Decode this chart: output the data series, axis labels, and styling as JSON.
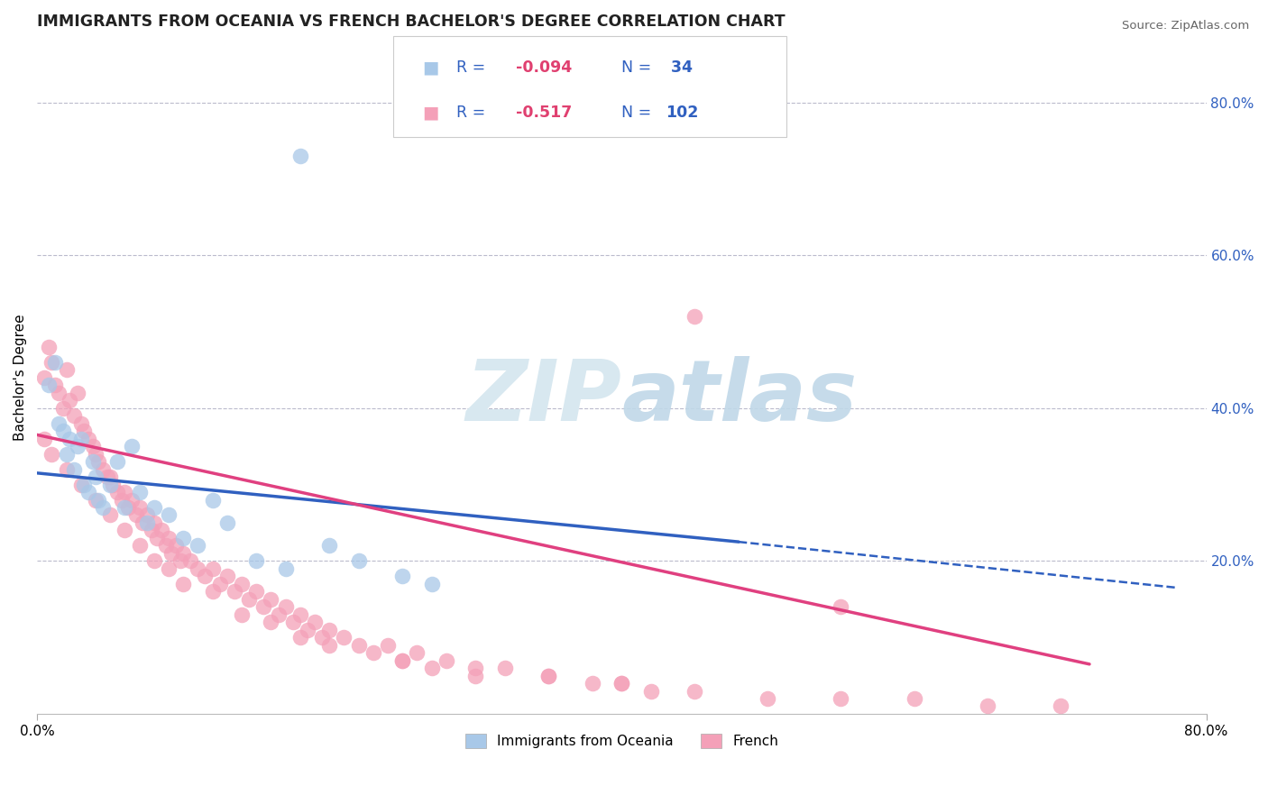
{
  "title": "IMMIGRANTS FROM OCEANIA VS FRENCH BACHELOR'S DEGREE CORRELATION CHART",
  "source": "Source: ZipAtlas.com",
  "ylabel": "Bachelor's Degree",
  "blue_color": "#a8c8e8",
  "pink_color": "#f4a0b8",
  "blue_line_color": "#3060c0",
  "pink_line_color": "#e04080",
  "legend_r_color": "#e04070",
  "legend_n_color": "#3060c0",
  "legend_label_color": "#3060c0",
  "watermark_color": "#d8e8f0",
  "xmin": 0.0,
  "xmax": 0.8,
  "ymin": 0.0,
  "ymax": 0.88,
  "blue_scatter_x": [
    0.008,
    0.012,
    0.015,
    0.018,
    0.02,
    0.022,
    0.025,
    0.028,
    0.03,
    0.032,
    0.035,
    0.038,
    0.04,
    0.042,
    0.045,
    0.05,
    0.055,
    0.06,
    0.065,
    0.07,
    0.075,
    0.08,
    0.09,
    0.1,
    0.11,
    0.12,
    0.13,
    0.15,
    0.17,
    0.2,
    0.22,
    0.25,
    0.27,
    0.18
  ],
  "blue_scatter_y": [
    0.43,
    0.46,
    0.38,
    0.37,
    0.34,
    0.36,
    0.32,
    0.35,
    0.36,
    0.3,
    0.29,
    0.33,
    0.31,
    0.28,
    0.27,
    0.3,
    0.33,
    0.27,
    0.35,
    0.29,
    0.25,
    0.27,
    0.26,
    0.23,
    0.22,
    0.28,
    0.25,
    0.2,
    0.19,
    0.22,
    0.2,
    0.18,
    0.17,
    0.73
  ],
  "pink_scatter_x": [
    0.005,
    0.008,
    0.01,
    0.012,
    0.015,
    0.018,
    0.02,
    0.022,
    0.025,
    0.028,
    0.03,
    0.032,
    0.035,
    0.038,
    0.04,
    0.042,
    0.045,
    0.048,
    0.05,
    0.052,
    0.055,
    0.058,
    0.06,
    0.062,
    0.065,
    0.068,
    0.07,
    0.072,
    0.075,
    0.078,
    0.08,
    0.082,
    0.085,
    0.088,
    0.09,
    0.092,
    0.095,
    0.098,
    0.1,
    0.105,
    0.11,
    0.115,
    0.12,
    0.125,
    0.13,
    0.135,
    0.14,
    0.145,
    0.15,
    0.155,
    0.16,
    0.165,
    0.17,
    0.175,
    0.18,
    0.185,
    0.19,
    0.195,
    0.2,
    0.21,
    0.22,
    0.23,
    0.24,
    0.25,
    0.26,
    0.27,
    0.28,
    0.3,
    0.32,
    0.35,
    0.38,
    0.4,
    0.42,
    0.45,
    0.5,
    0.55,
    0.6,
    0.65,
    0.7,
    0.005,
    0.01,
    0.02,
    0.03,
    0.04,
    0.05,
    0.06,
    0.07,
    0.08,
    0.09,
    0.1,
    0.12,
    0.14,
    0.16,
    0.18,
    0.2,
    0.25,
    0.3,
    0.35,
    0.4,
    0.45,
    0.55
  ],
  "pink_scatter_y": [
    0.44,
    0.48,
    0.46,
    0.43,
    0.42,
    0.4,
    0.45,
    0.41,
    0.39,
    0.42,
    0.38,
    0.37,
    0.36,
    0.35,
    0.34,
    0.33,
    0.32,
    0.31,
    0.31,
    0.3,
    0.29,
    0.28,
    0.29,
    0.27,
    0.28,
    0.26,
    0.27,
    0.25,
    0.26,
    0.24,
    0.25,
    0.23,
    0.24,
    0.22,
    0.23,
    0.21,
    0.22,
    0.2,
    0.21,
    0.2,
    0.19,
    0.18,
    0.19,
    0.17,
    0.18,
    0.16,
    0.17,
    0.15,
    0.16,
    0.14,
    0.15,
    0.13,
    0.14,
    0.12,
    0.13,
    0.11,
    0.12,
    0.1,
    0.11,
    0.1,
    0.09,
    0.08,
    0.09,
    0.07,
    0.08,
    0.06,
    0.07,
    0.05,
    0.06,
    0.05,
    0.04,
    0.04,
    0.03,
    0.03,
    0.02,
    0.02,
    0.02,
    0.01,
    0.01,
    0.36,
    0.34,
    0.32,
    0.3,
    0.28,
    0.26,
    0.24,
    0.22,
    0.2,
    0.19,
    0.17,
    0.16,
    0.13,
    0.12,
    0.1,
    0.09,
    0.07,
    0.06,
    0.05,
    0.04,
    0.52,
    0.14
  ],
  "blue_line_x0": 0.0,
  "blue_line_x_solid_end": 0.48,
  "blue_line_x_dash_end": 0.78,
  "blue_line_y0": 0.315,
  "blue_line_y_solid_end": 0.225,
  "blue_line_y_dash_end": 0.165,
  "pink_line_x0": 0.0,
  "pink_line_x_end": 0.72,
  "pink_line_y0": 0.365,
  "pink_line_y_end": 0.065
}
